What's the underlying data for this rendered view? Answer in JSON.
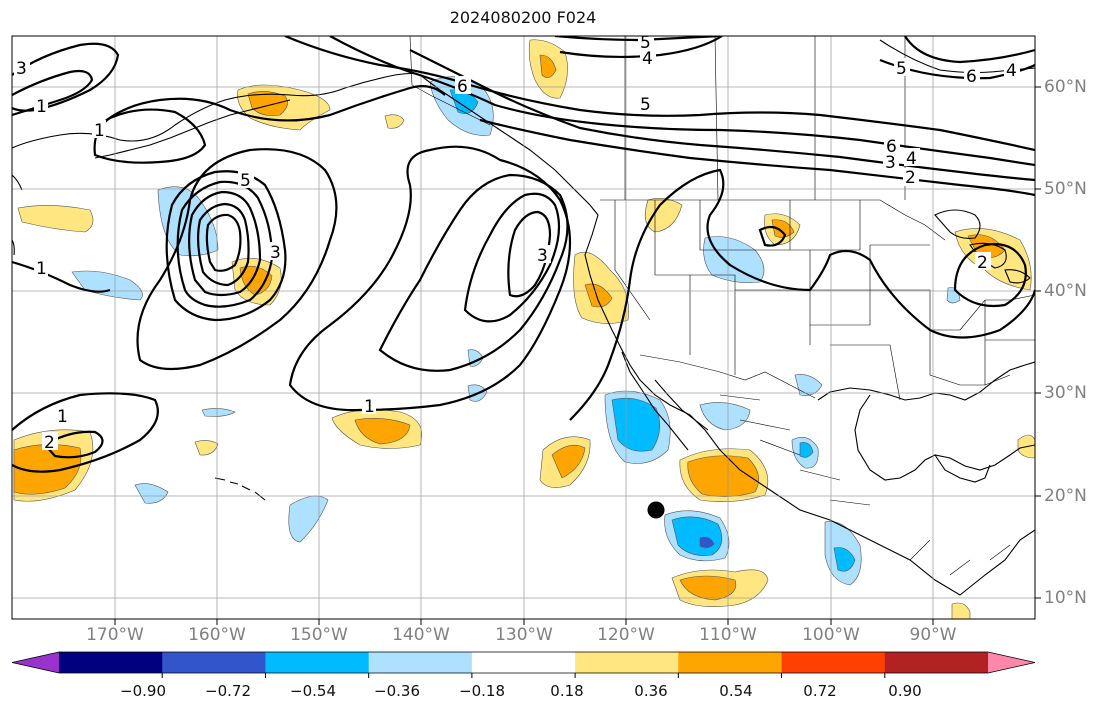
{
  "title": "2024080200 F024",
  "longitude_labels": [
    "170°W",
    "160°W",
    "150°W",
    "140°W",
    "130°W",
    "120°W",
    "110°W",
    "100°W",
    "90°W"
  ],
  "latitude_labels": [
    "60°N",
    "50°N",
    "40°N",
    "30°N",
    "20°N",
    "10°N"
  ],
  "colorbar": {
    "colors": [
      "#9933cc",
      "#000080",
      "#3355cc",
      "#00bbff",
      "#aee0ff",
      "#ffffff",
      "#ffe680",
      "#ffa500",
      "#ff4000",
      "#b22222",
      "#ff88aa"
    ],
    "tick_labels": [
      "−0.90",
      "−0.72",
      "−0.54",
      "−0.36",
      "−0.18",
      "0.18",
      "0.36",
      "0.54",
      "0.72",
      "0.90"
    ]
  },
  "contour_labels": {
    "a": "3",
    "b": "1",
    "c": "1",
    "d": "6",
    "e": "5",
    "f": "4",
    "g": "5",
    "h": "6",
    "i": "3",
    "j": "4",
    "k": "2",
    "l": "5",
    "m": "3",
    "n": "1",
    "o": "3",
    "p": "1",
    "q": "2",
    "r": "2",
    "s": "6",
    "t": "4",
    "u": "5",
    "v": "1"
  }
}
